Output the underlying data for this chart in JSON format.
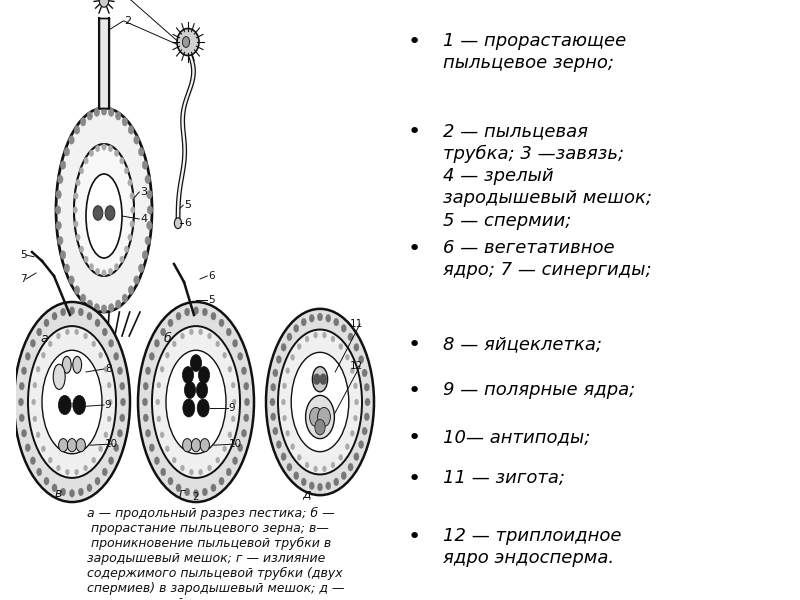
{
  "background_color": "#ffffff",
  "bullet_items": [
    "1 — прорастающее\nпыльцевое зерно;",
    "2 — пыльцевая\nтрубка; 3 —завязь;\n4 — зрелый\nзародышевый мешок;\n5 — спермии;",
    "6 — вегетативное\nядро; 7 — синергиды;",
    "8 — яйцеклетка;",
    "9 — полярные ядра;",
    "10— антиподы;",
    "11 — зигота;",
    "12 — триплоидное\nядро эндосперма."
  ],
  "caption_text": "а — продольный разрез пестика; б —\n прорастание пыльцевого зерна; в—\n проникновение пыльцевой трубки в\nзародышевый мешок; г — излияние\nсодержимого пыльцевой трубки (двух\nспермиев) в зародышевый мешок; д —\n зародышевый мешок после\nоплодотворения:",
  "font_size_bullet": 13,
  "font_size_caption": 9,
  "text_color": "#000000",
  "lc": "#111111"
}
